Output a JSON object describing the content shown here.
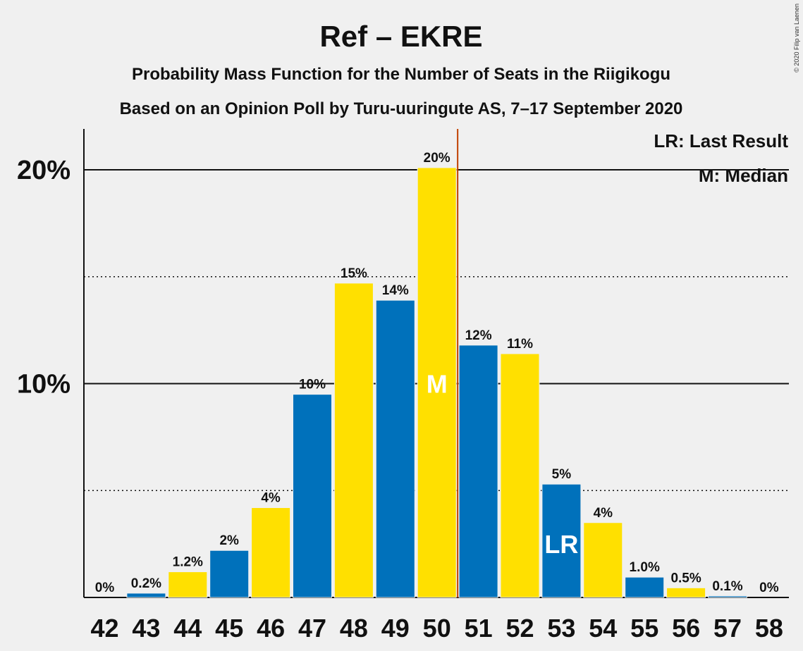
{
  "copyright": "© 2020 Filip van Laenen",
  "chart_data": {
    "type": "bar",
    "title": "Ref – EKRE",
    "subtitle1": "Probability Mass Function for the Number of Seats in the Riigikogu",
    "subtitle2": "Based on an Opinion Poll by Turu-uuringute AS, 7–17 September 2020",
    "legend": {
      "lr": "LR: Last Result",
      "m": "M: Median",
      "placement": "top-right"
    },
    "categories": [
      "42",
      "43",
      "44",
      "45",
      "46",
      "47",
      "48",
      "49",
      "50",
      "51",
      "52",
      "53",
      "54",
      "55",
      "56",
      "57",
      "58"
    ],
    "values": [
      0,
      0.2,
      1.2,
      2.2,
      4.2,
      9.5,
      14.7,
      13.9,
      20.1,
      11.8,
      11.4,
      5.3,
      3.5,
      0.95,
      0.45,
      0.07,
      0
    ],
    "value_labels": [
      "0%",
      "0.2%",
      "1.2%",
      "2%",
      "4%",
      "10%",
      "15%",
      "14%",
      "20%",
      "12%",
      "11%",
      "5%",
      "4%",
      "1.0%",
      "0.5%",
      "0.1%",
      "0%"
    ],
    "ylim": [
      0,
      22
    ],
    "yticks": [
      {
        "value": 10,
        "label": "10%"
      },
      {
        "value": 20,
        "label": "20%"
      }
    ],
    "minor_gridlines": [
      5,
      15
    ],
    "median_seat": "50",
    "median_marker": "M",
    "last_result_seat": "53",
    "last_result_marker": "LR",
    "colors": {
      "blue": "#0071bb",
      "yellow": "#ffe000",
      "median_line": "#c04000",
      "background": "#f0f0f0"
    }
  }
}
